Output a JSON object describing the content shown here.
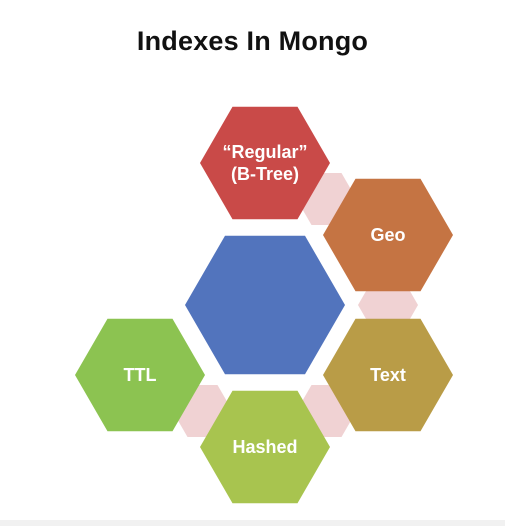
{
  "title": "Indexes In Mongo",
  "hexagons": [
    {
      "id": "center",
      "lines": [],
      "color": "#5274BD"
    },
    {
      "id": "regular",
      "lines": [
        "“Regular”",
        "(B-Tree)"
      ],
      "color": "#C94A48"
    },
    {
      "id": "geo",
      "lines": [
        "Geo"
      ],
      "color": "#C57443"
    },
    {
      "id": "text",
      "lines": [
        "Text"
      ],
      "color": "#B99C47"
    },
    {
      "id": "hashed",
      "lines": [
        "Hashed"
      ],
      "color": "#A8C44F"
    },
    {
      "id": "ttl",
      "lines": [
        "TTL"
      ],
      "color": "#8CC351"
    }
  ],
  "connector_color": "#F0D2D3"
}
